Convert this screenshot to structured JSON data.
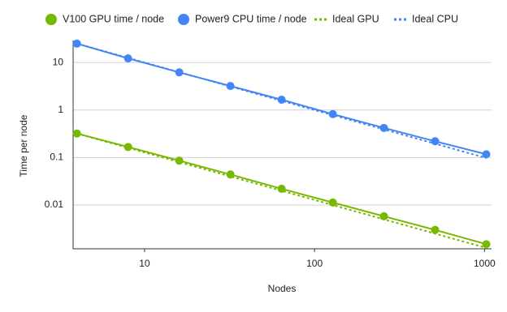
{
  "chart_data": {
    "type": "line",
    "x_label": "Nodes",
    "y_label": "Time per node",
    "x": [
      4,
      8,
      16,
      32,
      64,
      128,
      256,
      512,
      1024
    ],
    "series": [
      {
        "name": "V100 GPU time / node",
        "color": "#76b900",
        "markers": true,
        "dashed": false,
        "values": [
          0.32,
          0.167,
          0.086,
          0.044,
          0.022,
          0.0113,
          0.0058,
          0.003,
          0.0015
        ]
      },
      {
        "name": "Power9 CPU time / node",
        "color": "#4285f4",
        "markers": true,
        "dashed": false,
        "values": [
          25,
          12.2,
          6.2,
          3.2,
          1.65,
          0.82,
          0.42,
          0.22,
          0.117
        ]
      },
      {
        "name": "Ideal GPU",
        "color": "#76b900",
        "markers": false,
        "dashed": true,
        "values": [
          0.32,
          0.16,
          0.08,
          0.04,
          0.02,
          0.01,
          0.005,
          0.0025,
          0.00125
        ]
      },
      {
        "name": "Ideal CPU",
        "color": "#4285f4",
        "markers": false,
        "dashed": true,
        "values": [
          25,
          12.5,
          6.25,
          3.125,
          1.5625,
          0.78125,
          0.390625,
          0.1953125,
          0.09765625
        ]
      }
    ],
    "x_log": true,
    "y_log": true,
    "xlim": [
      3.8,
      1100
    ],
    "ylim": [
      0.0012,
      29
    ],
    "xticks": [
      10,
      100,
      1000
    ],
    "yticks": [
      10,
      1,
      0.1,
      0.01
    ],
    "grid": true,
    "legend_position": "top"
  }
}
